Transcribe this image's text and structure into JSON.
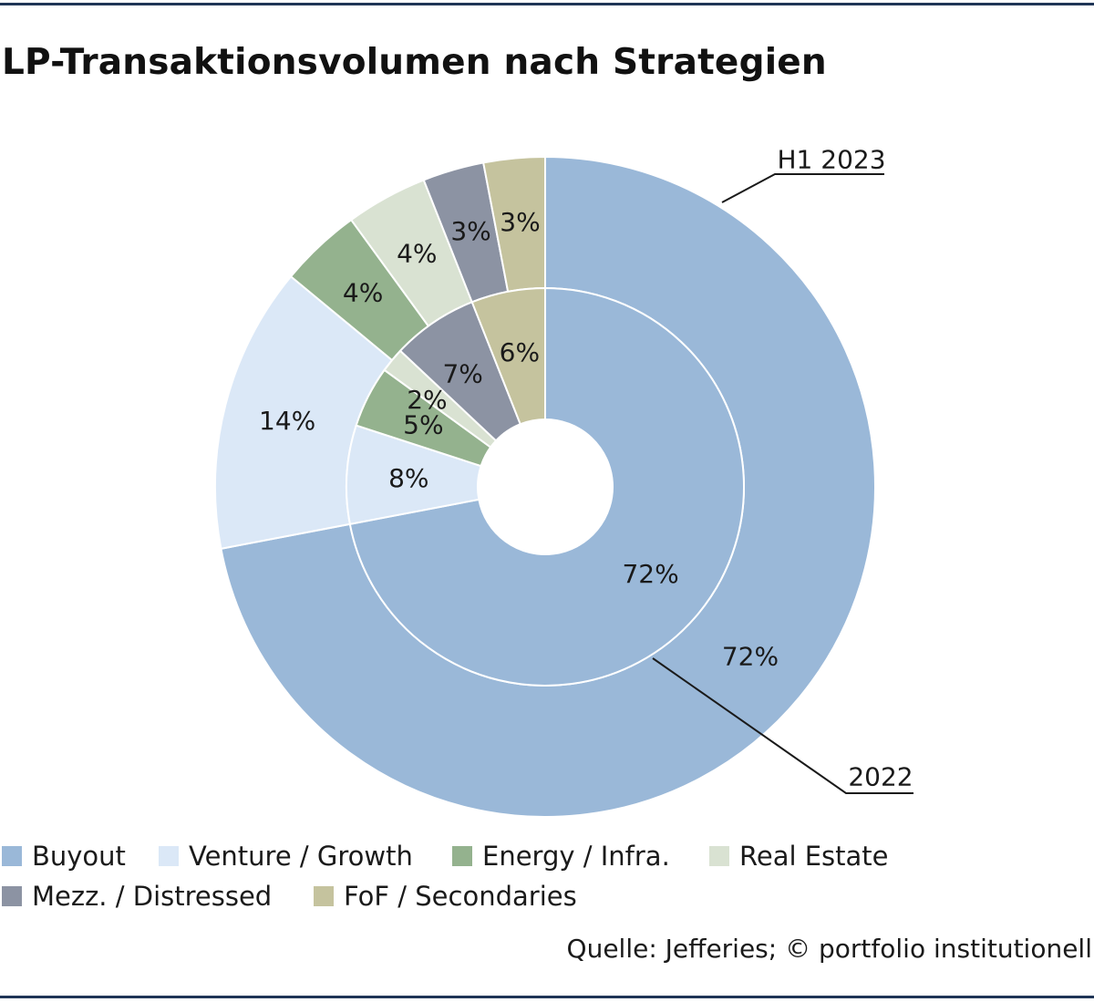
{
  "title": "LP-Transaktionsvolumen nach Strategien",
  "source": "Quelle: Jefferies; © portfolio institutionell",
  "colors": {
    "Buyout": "#9ab8d8",
    "Venture / Growth": "#dbe8f7",
    "Energy / Infra.": "#94b28e",
    "Real Estate": "#d9e2d2",
    "Mezz. / Distressed": "#8c93a3",
    "FoF / Secondaries": "#c5c39e"
  },
  "legend": [
    {
      "label": "Buyout",
      "color": "#9ab8d8"
    },
    {
      "label": "Venture / Growth",
      "color": "#dbe8f7"
    },
    {
      "label": "Energy / Infra.",
      "color": "#94b28e"
    },
    {
      "label": "Real Estate",
      "color": "#d9e2d2"
    },
    {
      "label": "Mezz. / Distressed",
      "color": "#8c93a3"
    },
    {
      "label": "FoF / Secondaries",
      "color": "#c5c39e"
    }
  ],
  "chart_data": {
    "type": "pie",
    "subtype": "nested-donut",
    "title": "LP-Transaktionsvolumen nach Strategien",
    "categories": [
      "Buyout",
      "Venture / Growth",
      "Energy / Infra.",
      "Real Estate",
      "Mezz. / Distressed",
      "FoF / Secondaries"
    ],
    "series": [
      {
        "name": "H1 2023",
        "ring": "outer",
        "values": [
          72,
          14,
          4,
          4,
          3,
          3
        ],
        "labels": [
          "72%",
          "14%",
          "4%",
          "4%",
          "3%",
          "3%"
        ]
      },
      {
        "name": "2022",
        "ring": "inner",
        "values": [
          72,
          8,
          5,
          2,
          7,
          6
        ],
        "labels": [
          "72%",
          "8%",
          "5%",
          "2%",
          "7%",
          "6%"
        ]
      }
    ],
    "legend_position": "bottom"
  }
}
